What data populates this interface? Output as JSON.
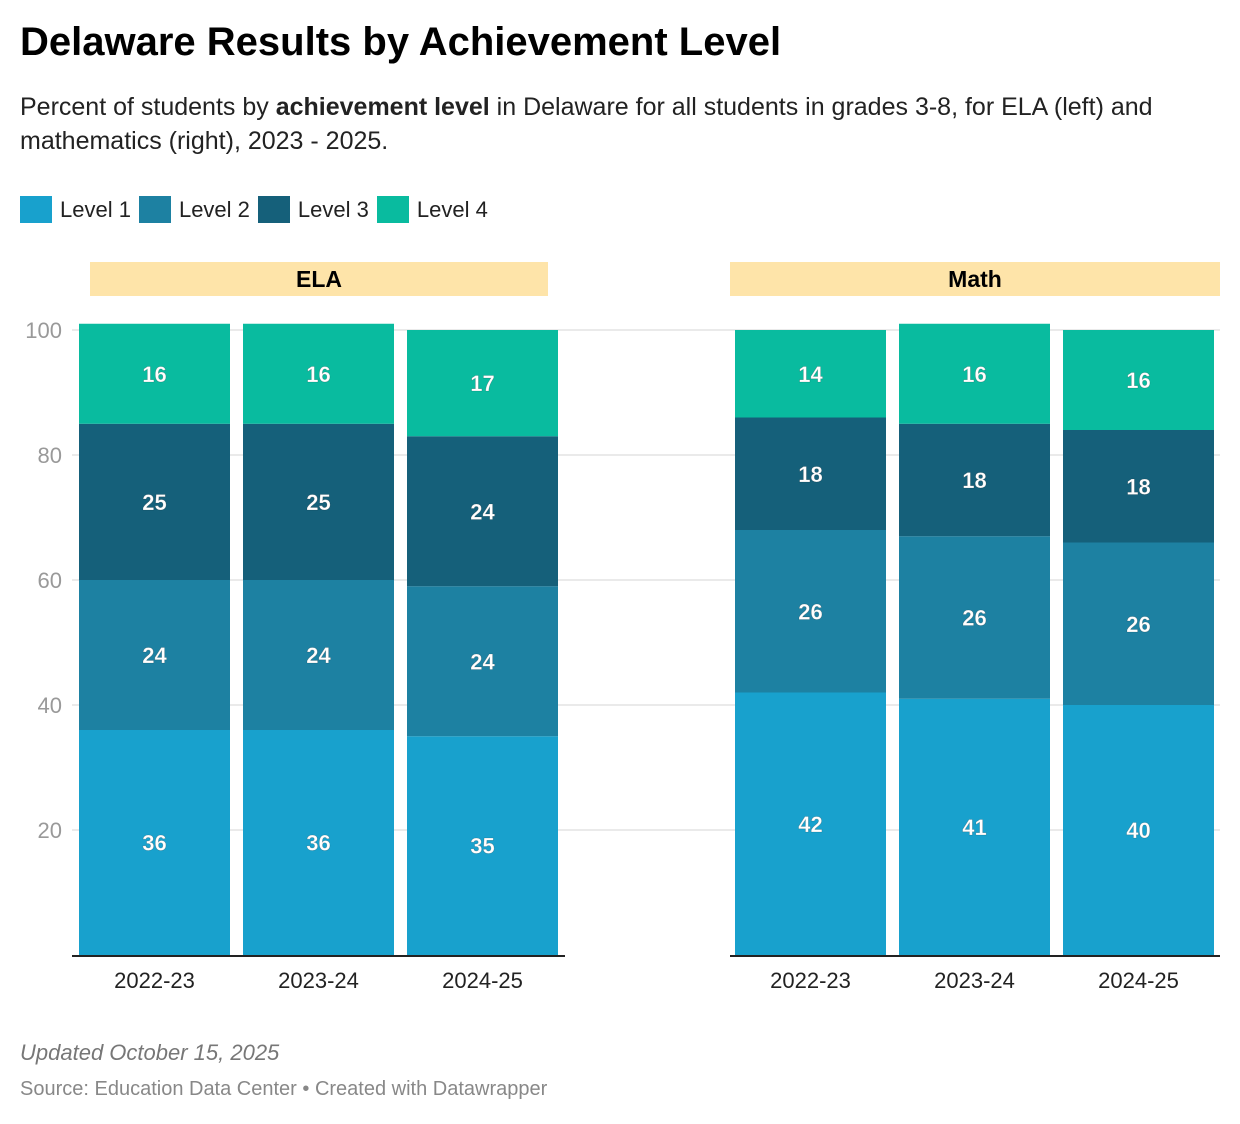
{
  "title": "Delaware Results by Achievement Level",
  "subtitle": {
    "pre": "Percent of students by ",
    "bold": "achievement level",
    "post": " in Delaware for all students in grades 3-8, for ELA (left) and mathematics (right), 2023 - 2025."
  },
  "footer": {
    "updated": "Updated October 15, 2025",
    "source": "Source: Education Data Center • Created with Datawrapper"
  },
  "colors": {
    "Level 1": "#18a1cd",
    "Level 2": "#1d81a2",
    "Level 3": "#15607a",
    "Level 4": "#09bb9f",
    "facet_bg": "#fee4a9",
    "grid": "#e3e3e3"
  },
  "chart_data": {
    "type": "bar",
    "stacked": true,
    "legend": [
      "Level 1",
      "Level 2",
      "Level 3",
      "Level 4"
    ],
    "legend_placement": "top-left",
    "ylim": [
      0,
      100
    ],
    "yticks": [
      20,
      40,
      60,
      80,
      100
    ],
    "grid": true,
    "panels": [
      {
        "name": "ELA",
        "categories": [
          "2022-23",
          "2023-24",
          "2024-25"
        ],
        "series": [
          {
            "name": "Level 1",
            "values": [
              36,
              36,
              35
            ]
          },
          {
            "name": "Level 2",
            "values": [
              24,
              24,
              24
            ]
          },
          {
            "name": "Level 3",
            "values": [
              25,
              25,
              24
            ]
          },
          {
            "name": "Level 4",
            "values": [
              16,
              16,
              17
            ]
          }
        ]
      },
      {
        "name": "Math",
        "categories": [
          "2022-23",
          "2023-24",
          "2024-25"
        ],
        "series": [
          {
            "name": "Level 1",
            "values": [
              42,
              41,
              40
            ]
          },
          {
            "name": "Level 2",
            "values": [
              26,
              26,
              26
            ]
          },
          {
            "name": "Level 3",
            "values": [
              18,
              18,
              18
            ]
          },
          {
            "name": "Level 4",
            "values": [
              14,
              16,
              16
            ]
          }
        ]
      }
    ]
  }
}
